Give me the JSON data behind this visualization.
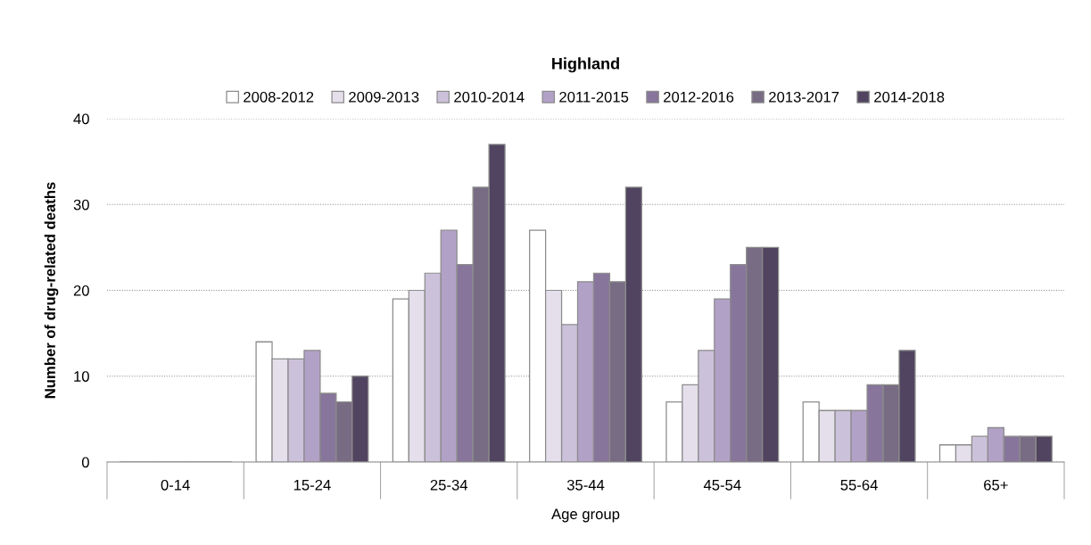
{
  "chart_data": {
    "type": "bar",
    "title": "Highland",
    "xlabel": "Age group",
    "ylabel": "Number of drug-related deaths",
    "categories": [
      "0-14",
      "15-24",
      "25-34",
      "35-44",
      "45-54",
      "55-64",
      "65+"
    ],
    "series": [
      {
        "name": "2008-2012",
        "color": "#ffffff",
        "values": [
          0,
          14,
          19,
          27,
          7,
          7,
          2
        ]
      },
      {
        "name": "2009-2013",
        "color": "#e5dfec",
        "values": [
          0,
          12,
          20,
          20,
          9,
          6,
          2
        ]
      },
      {
        "name": "2010-2014",
        "color": "#ccc1da",
        "values": [
          0,
          12,
          22,
          16,
          13,
          6,
          3
        ]
      },
      {
        "name": "2011-2015",
        "color": "#b2a1c7",
        "values": [
          0,
          13,
          27,
          21,
          19,
          6,
          4
        ]
      },
      {
        "name": "2012-2016",
        "color": "#87759b",
        "values": [
          0,
          8,
          23,
          22,
          23,
          9,
          3
        ]
      },
      {
        "name": "2013-2017",
        "color": "#786c84",
        "values": [
          0,
          7,
          32,
          21,
          25,
          9,
          3
        ]
      },
      {
        "name": "2014-2018",
        "color": "#514460",
        "values": [
          0,
          10,
          37,
          32,
          25,
          13,
          3
        ]
      }
    ],
    "ylim": [
      0,
      40
    ],
    "yticks": [
      0,
      10,
      20,
      30,
      40
    ],
    "grid": "y",
    "legend": "top"
  }
}
